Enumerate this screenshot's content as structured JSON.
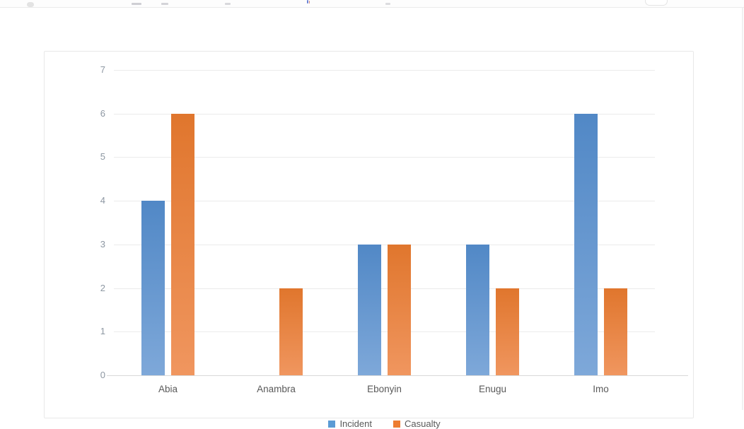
{
  "topbar": {
    "note_icon": "cursor-icon",
    "pill_icon": "toolbar-pill-icon"
  },
  "chart_data": {
    "type": "bar",
    "title": "",
    "xlabel": "",
    "ylabel": "",
    "categories": [
      "Abia",
      "Anambra",
      "Ebonyin",
      "Enugu",
      "Imo"
    ],
    "series": [
      {
        "name": "Incident",
        "color": "#5b9bd5",
        "gradient_top": "#5188c6",
        "gradient_bottom": "#7ea8d9",
        "values": [
          4,
          0,
          3,
          3,
          6
        ]
      },
      {
        "name": "Casualty",
        "color": "#ed7d31",
        "gradient_top": "#e0762d",
        "gradient_bottom": "#f0965f",
        "values": [
          6,
          2,
          3,
          2,
          2
        ]
      }
    ],
    "ylim": [
      0,
      7
    ],
    "yticks": [
      0,
      1,
      2,
      3,
      4,
      5,
      6,
      7
    ],
    "grid": true,
    "legend_position": "bottom",
    "colors": {
      "gridline": "#ebebeb",
      "axis_line": "#d9d9d9",
      "ytick_text": "#8d97a2",
      "category_text": "#595959",
      "legend_text": "#595959",
      "card_border": "#e8e8e8"
    }
  }
}
